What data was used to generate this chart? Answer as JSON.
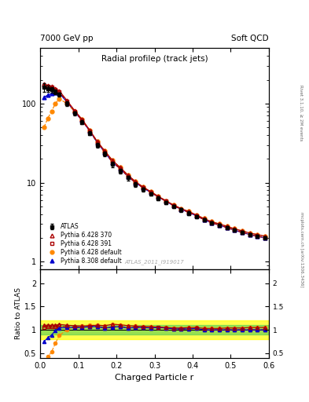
{
  "title_main": "Radial profileρ (track jets)",
  "top_left": "7000 GeV pp",
  "top_right": "Soft QCD",
  "right_label_top": "Rivet 3.1.10, ≥ 2M events",
  "right_label_bottom": "mcplots.cern.ch [arXiv:1306.3436]",
  "watermark": "ATLAS_2011_I919017",
  "xlabel": "Charged Particle r",
  "ylabel_ratio": "Ratio to ATLAS",
  "xlim": [
    0.0,
    0.6
  ],
  "ylim_main_log": [
    0.8,
    500
  ],
  "ylim_ratio": [
    0.4,
    2.3
  ],
  "x": [
    0.01,
    0.02,
    0.03,
    0.04,
    0.05,
    0.07,
    0.09,
    0.11,
    0.13,
    0.15,
    0.17,
    0.19,
    0.21,
    0.23,
    0.25,
    0.27,
    0.29,
    0.31,
    0.33,
    0.35,
    0.37,
    0.39,
    0.41,
    0.43,
    0.45,
    0.47,
    0.49,
    0.51,
    0.53,
    0.55,
    0.57,
    0.59
  ],
  "atlas_y": [
    160,
    155,
    150,
    140,
    130,
    100,
    75,
    58,
    42,
    30,
    23,
    17,
    14,
    11.5,
    9.5,
    8.2,
    7.2,
    6.3,
    5.6,
    5.0,
    4.5,
    4.1,
    3.7,
    3.4,
    3.1,
    2.9,
    2.7,
    2.5,
    2.35,
    2.2,
    2.1,
    2.0
  ],
  "atlas_yerr": [
    20,
    15,
    12,
    10,
    8,
    6,
    4,
    3,
    2.5,
    2,
    1.5,
    1.2,
    1.0,
    0.8,
    0.6,
    0.5,
    0.4,
    0.35,
    0.3,
    0.27,
    0.24,
    0.21,
    0.18,
    0.16,
    0.14,
    0.12,
    0.11,
    0.1,
    0.09,
    0.08,
    0.07,
    0.07
  ],
  "py6_370_y": [
    175,
    170,
    165,
    155,
    145,
    110,
    82,
    63,
    46,
    33,
    25,
    19,
    15.5,
    12.5,
    10.3,
    8.8,
    7.7,
    6.7,
    5.9,
    5.2,
    4.7,
    4.3,
    3.9,
    3.5,
    3.2,
    3.0,
    2.8,
    2.6,
    2.45,
    2.3,
    2.2,
    2.1
  ],
  "py6_391_y": [
    170,
    165,
    160,
    150,
    140,
    107,
    80,
    61,
    45,
    32,
    24,
    18,
    15,
    12,
    10,
    8.6,
    7.5,
    6.6,
    5.8,
    5.1,
    4.6,
    4.2,
    3.8,
    3.4,
    3.1,
    2.9,
    2.7,
    2.5,
    2.35,
    2.2,
    2.1,
    2.0
  ],
  "py6_def_y": [
    50,
    65,
    80,
    100,
    115,
    100,
    80,
    63,
    46,
    33,
    25,
    19,
    15.5,
    12.5,
    10.3,
    8.8,
    7.7,
    6.7,
    5.9,
    5.2,
    4.7,
    4.3,
    3.9,
    3.5,
    3.2,
    3.0,
    2.8,
    2.6,
    2.45,
    2.3,
    2.2,
    2.1
  ],
  "py8_def_y": [
    120,
    128,
    133,
    138,
    135,
    105,
    79,
    61,
    45,
    32,
    24,
    18,
    15,
    12,
    10,
    8.6,
    7.5,
    6.6,
    5.8,
    5.1,
    4.6,
    4.2,
    3.8,
    3.4,
    3.1,
    2.9,
    2.7,
    2.5,
    2.35,
    2.2,
    2.1,
    2.0
  ],
  "ratio_py6_370": [
    1.1,
    1.1,
    1.1,
    1.1,
    1.12,
    1.1,
    1.09,
    1.08,
    1.09,
    1.1,
    1.09,
    1.12,
    1.11,
    1.09,
    1.08,
    1.07,
    1.07,
    1.06,
    1.05,
    1.04,
    1.04,
    1.05,
    1.05,
    1.03,
    1.03,
    1.03,
    1.04,
    1.04,
    1.04,
    1.05,
    1.05,
    1.05
  ],
  "ratio_py6_391": [
    1.06,
    1.07,
    1.07,
    1.07,
    1.08,
    1.07,
    1.06,
    1.05,
    1.07,
    1.07,
    1.04,
    1.06,
    1.07,
    1.04,
    1.05,
    1.05,
    1.04,
    1.05,
    1.04,
    1.02,
    1.02,
    1.02,
    1.03,
    1.0,
    1.0,
    1.0,
    1.0,
    1.0,
    1.0,
    1.0,
    1.0,
    1.0
  ],
  "ratio_py6_def": [
    0.31,
    0.42,
    0.53,
    0.71,
    0.88,
    1.0,
    1.07,
    1.09,
    1.1,
    1.1,
    1.09,
    1.12,
    1.11,
    1.09,
    1.08,
    1.07,
    1.07,
    1.06,
    1.05,
    1.04,
    1.04,
    1.05,
    1.05,
    1.03,
    1.03,
    1.03,
    1.04,
    1.04,
    1.04,
    1.05,
    1.05,
    1.05
  ],
  "ratio_py8_def": [
    0.75,
    0.83,
    0.89,
    0.99,
    1.04,
    1.05,
    1.05,
    1.05,
    1.07,
    1.07,
    1.04,
    1.06,
    1.07,
    1.04,
    1.05,
    1.05,
    1.04,
    1.05,
    1.04,
    1.02,
    1.02,
    1.02,
    1.03,
    1.0,
    1.0,
    1.0,
    1.0,
    1.0,
    1.0,
    1.0,
    1.0,
    1.0
  ],
  "color_atlas": "#000000",
  "color_py6_370": "#aa0000",
  "color_py6_391": "#aa0000",
  "color_py6_def": "#ff8800",
  "color_py8_def": "#0000cc",
  "band_green": [
    0.9,
    1.1
  ],
  "band_yellow": [
    0.8,
    1.2
  ]
}
